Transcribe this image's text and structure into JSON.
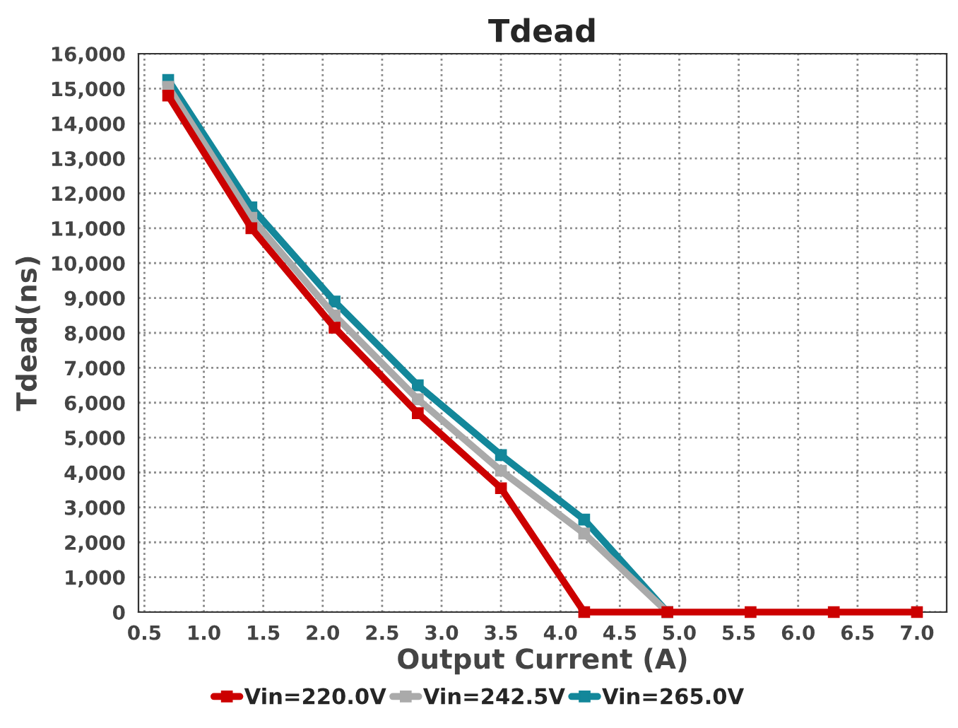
{
  "chart_data": {
    "type": "line",
    "title": "Tdead",
    "xlabel": "Output Current (A)",
    "ylabel": "Tdead(ns)",
    "x": [
      0.7,
      1.4,
      2.1,
      2.8,
      3.5,
      4.2,
      4.9,
      5.6,
      6.3,
      7.0
    ],
    "series": [
      {
        "name": "Vin=220.0V",
        "color": "#cc0000",
        "values": [
          14800,
          11000,
          8150,
          5700,
          3550,
          0,
          0,
          0,
          0,
          0
        ]
      },
      {
        "name": "Vin=242.5V",
        "color": "#aaaaaa",
        "values": [
          15050,
          11300,
          8500,
          6100,
          4050,
          2250,
          0,
          null,
          null,
          null
        ]
      },
      {
        "name": "Vin=265.0V",
        "color": "#13879a",
        "values": [
          15250,
          11600,
          8900,
          6500,
          4500,
          2650,
          0,
          null,
          null,
          null
        ]
      }
    ],
    "xlim": [
      0.45,
      7.25
    ],
    "xticks": [
      0.5,
      {
        "value": 1,
        "label": "1.0"
      },
      1.5,
      {
        "value": 2,
        "label": "2.0"
      },
      2.5,
      {
        "value": 3,
        "label": "3.0"
      },
      3.5,
      {
        "value": 4,
        "label": "4.0"
      },
      4.5,
      {
        "value": 5,
        "label": "5.0"
      },
      5.5,
      {
        "value": 6,
        "label": "6.0"
      },
      6.5,
      {
        "value": 7,
        "label": "7.0"
      }
    ],
    "ylim": [
      0,
      16000
    ],
    "yticks": [
      {
        "value": 0,
        "label": "0"
      },
      {
        "value": 1000,
        "label": "1,000"
      },
      {
        "value": 2000,
        "label": "2,000"
      },
      {
        "value": 3000,
        "label": "3,000"
      },
      {
        "value": 4000,
        "label": "4,000"
      },
      {
        "value": 5000,
        "label": "5,000"
      },
      {
        "value": 6000,
        "label": "6,000"
      },
      {
        "value": 7000,
        "label": "7,000"
      },
      {
        "value": 8000,
        "label": "8,000"
      },
      {
        "value": 9000,
        "label": "9,000"
      },
      {
        "value": 10000,
        "label": "10,000"
      },
      {
        "value": 11000,
        "label": "11,000"
      },
      {
        "value": 12000,
        "label": "12,000"
      },
      {
        "value": 13000,
        "label": "13,000"
      },
      {
        "value": 14000,
        "label": "14,000"
      },
      {
        "value": 15000,
        "label": "15,000"
      },
      {
        "value": 16000,
        "label": "16,000"
      }
    ],
    "grid": true,
    "legend": "bottom",
    "marker": "square",
    "line_style": "solid"
  }
}
